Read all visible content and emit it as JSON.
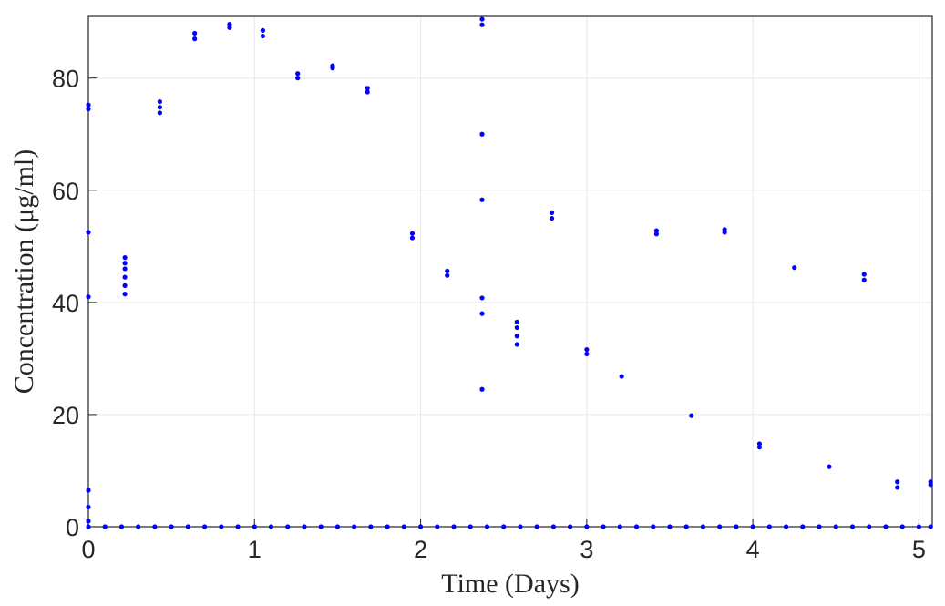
{
  "chart_data": {
    "type": "scatter",
    "x_label": "Time (Days)",
    "y_label": "Concentration (μg/ml)",
    "xlim": [
      0,
      5.08
    ],
    "ylim": [
      0,
      91
    ],
    "xticks": [
      0,
      1,
      2,
      3,
      4,
      5
    ],
    "yticks": [
      0,
      20,
      40,
      60,
      80
    ],
    "grid": true,
    "series": [
      {
        "color": "#0000ff",
        "x": [
          0,
          0.1,
          0.2,
          0.3,
          0.4,
          0.5,
          0.6,
          0.7,
          0.8,
          0.9,
          1,
          1.1,
          1.2,
          1.3,
          1.4,
          1.5,
          1.6,
          1.7,
          1.8,
          1.9,
          2,
          2.1,
          2.2,
          2.3,
          2.4,
          2.5,
          2.6,
          2.7,
          2.8,
          2.9,
          3,
          3.1,
          3.2,
          3.3,
          3.4,
          3.5,
          3.6,
          3.7,
          3.8,
          3.9,
          4,
          4.1,
          4.2,
          4.3,
          4.4,
          4.5,
          4.6,
          4.7,
          4.8,
          4.9,
          5,
          5.07,
          0,
          0,
          0,
          0,
          0,
          0,
          0,
          0.22,
          0.22,
          0.22,
          0.22,
          0.22,
          0.22,
          0.43,
          0.43,
          0.43,
          0.64,
          0.64,
          0.85,
          0.85,
          1.05,
          1.05,
          1.26,
          1.26,
          1.47,
          1.47,
          1.68,
          1.68,
          1.95,
          1.95,
          2.16,
          2.16,
          2.37,
          2.37,
          2.37,
          2.37,
          2.37,
          2.37,
          2.37,
          2.58,
          2.58,
          2.58,
          2.58,
          2.79,
          2.79,
          3,
          3,
          3.21,
          3.42,
          3.42,
          3.63,
          3.83,
          3.83,
          4.04,
          4.04,
          4.25,
          4.46,
          4.67,
          4.67,
          4.87,
          4.87,
          5.07,
          5.07
        ],
        "values": [
          0,
          0,
          0,
          0,
          0,
          0,
          0,
          0,
          0,
          0,
          0,
          0,
          0,
          0,
          0,
          0,
          0,
          0,
          0,
          0,
          0,
          0,
          0,
          0,
          0,
          0,
          0,
          0,
          0,
          0,
          0,
          0,
          0,
          0,
          0,
          0,
          0,
          0,
          0,
          0,
          0,
          0,
          0,
          0,
          0,
          0,
          0,
          0,
          0,
          0,
          0,
          0,
          75.2,
          74.5,
          52.5,
          41,
          6.5,
          3.5,
          1,
          41.5,
          43,
          44.5,
          46,
          47,
          48,
          73.8,
          74.8,
          75.8,
          87,
          88,
          89,
          89.6,
          87.5,
          88.5,
          80,
          80.8,
          81.8,
          82.2,
          77.5,
          78.2,
          51.5,
          52.3,
          44.8,
          45.6,
          90.5,
          89.5,
          70,
          58.3,
          40.8,
          38,
          24.5,
          32.5,
          34,
          35.5,
          36.5,
          55,
          56,
          30.8,
          31.6,
          26.8,
          52.2,
          52.8,
          19.8,
          52.5,
          53,
          14.2,
          14.8,
          46.2,
          10.7,
          44,
          45,
          7,
          8,
          7.5,
          8
        ]
      }
    ]
  }
}
